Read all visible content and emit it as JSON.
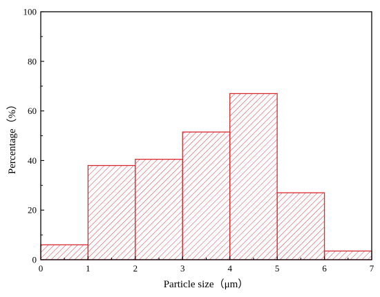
{
  "chart_data": {
    "type": "bar",
    "bins": [
      {
        "x0": 0,
        "x1": 1,
        "value": 6
      },
      {
        "x0": 1,
        "x1": 2,
        "value": 38
      },
      {
        "x0": 2,
        "x1": 3,
        "value": 40.5
      },
      {
        "x0": 3,
        "x1": 4,
        "value": 51.5
      },
      {
        "x0": 4,
        "x1": 5,
        "value": 67
      },
      {
        "x0": 5,
        "x1": 6,
        "value": 27
      },
      {
        "x0": 6,
        "x1": 7,
        "value": 3.5
      }
    ],
    "xlabel": "Particle size（μm）",
    "ylabel": "Percentage（%）",
    "xlim": [
      0,
      7
    ],
    "ylim": [
      0,
      100
    ],
    "xticks": [
      0,
      1,
      2,
      3,
      4,
      5,
      6,
      7
    ],
    "yticks": [
      0,
      20,
      40,
      60,
      80,
      100
    ],
    "grid": false,
    "bar_fill": "hatched",
    "bar_color": "#d9272e",
    "axis_color": "#000000"
  }
}
